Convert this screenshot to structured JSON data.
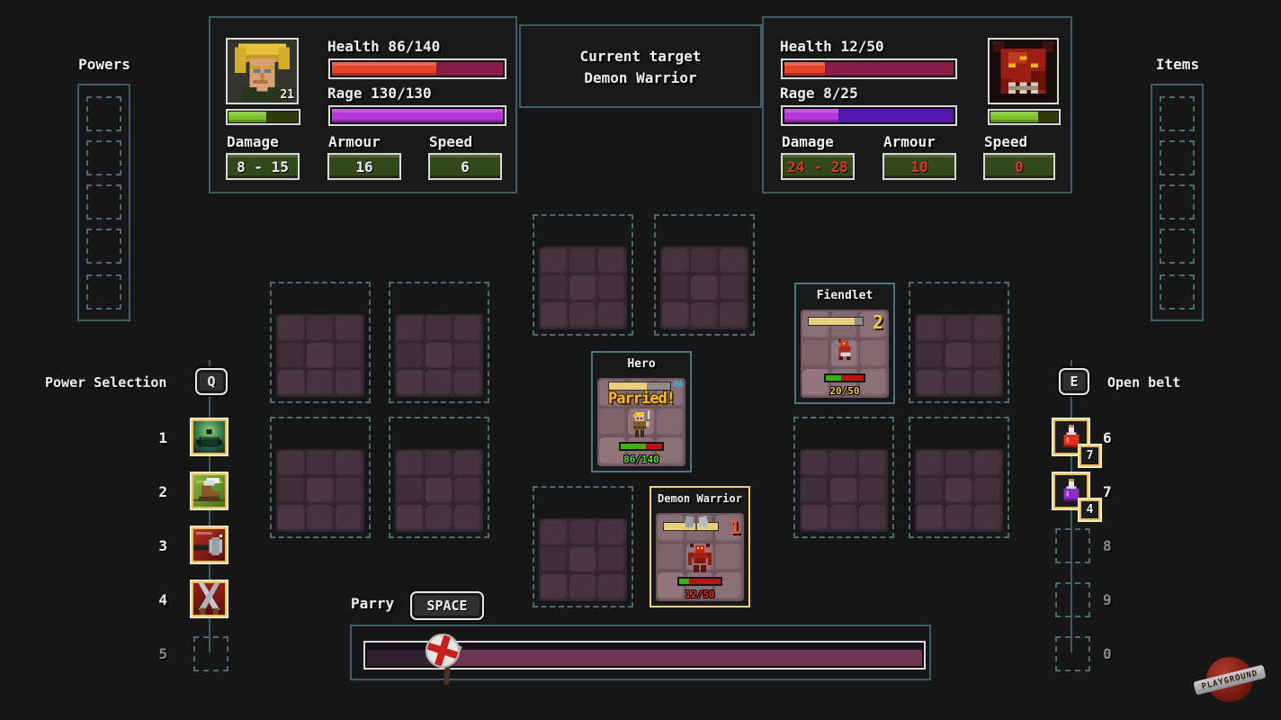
{
  "colors": {
    "accent_teal": "#3d5c63",
    "slot_gold": "#e7bd5d",
    "health_red": "#e8432c",
    "rage_magenta": "#b636d8",
    "xp_green": "#7cc02c",
    "enemy_stat_red": "#d9392b",
    "hp_green_text": "#67d83a",
    "hp_red_text": "#e23423",
    "hp_yellow_text": "#eec94d",
    "parried_gold": "#f6b92f"
  },
  "player_panel": {
    "level": "21",
    "portrait_icon": "hero-portrait",
    "health_label": "Health 86/140",
    "health_pct": 61,
    "rage_label": "Rage 130/130",
    "rage_pct": 100,
    "xp_pct": 55,
    "stats": [
      {
        "label": "Damage",
        "value": "8 - 15"
      },
      {
        "label": "Armour",
        "value": "16"
      },
      {
        "label": "Speed",
        "value": "6"
      }
    ]
  },
  "target_panel": {
    "line1": "Current target",
    "line2": "Demon Warrior"
  },
  "enemy_panel": {
    "portrait_icon": "demon-portrait",
    "health_label": "Health 12/50",
    "health_pct": 24,
    "rage_label": "Rage 8/25",
    "rage_pct": 32,
    "xp_pct": 70,
    "stats": [
      {
        "label": "Damage",
        "value": "24 - 28"
      },
      {
        "label": "Armour",
        "value": "10"
      },
      {
        "label": "Speed",
        "value": "0"
      }
    ]
  },
  "powers": {
    "title": "Powers"
  },
  "power_selection": {
    "title": "Power Selection",
    "key": "Q",
    "slots": [
      {
        "num": "1",
        "icon": "stone-guard-icon"
      },
      {
        "num": "2",
        "icon": "winged-boot-icon"
      },
      {
        "num": "3",
        "icon": "mace-strike-icon"
      },
      {
        "num": "4",
        "icon": "blade-whirl-icon"
      },
      {
        "num": "5",
        "icon": ""
      }
    ]
  },
  "items": {
    "title": "Items"
  },
  "belt": {
    "key": "E",
    "title": "Open belt",
    "slots": [
      {
        "num": "6",
        "icon": "red-potion-icon",
        "count": "7"
      },
      {
        "num": "7",
        "icon": "purple-potion-icon",
        "count": "4"
      },
      {
        "num": "8",
        "icon": "",
        "count": ""
      },
      {
        "num": "9",
        "icon": "",
        "count": ""
      },
      {
        "num": "0",
        "icon": "",
        "count": ""
      }
    ]
  },
  "board": {
    "hero": {
      "name": "Hero",
      "status": "Parried!",
      "hp_text": "86/140",
      "hp_pct": 61,
      "init_pct": 62
    },
    "fiendlet": {
      "name": "Fiendlet",
      "initiative": "2",
      "hp_text": "20/50",
      "hp_pct": 40,
      "init_pct": 85
    },
    "demon": {
      "name": "Demon Warrior",
      "initiative": "1",
      "hp_text": "12/50",
      "hp_pct": 24,
      "init_pct": 100
    }
  },
  "parry": {
    "label": "Parry",
    "key": "SPACE",
    "marker_pct": 14
  },
  "watermark": {
    "text": "PLAYGROUND"
  }
}
